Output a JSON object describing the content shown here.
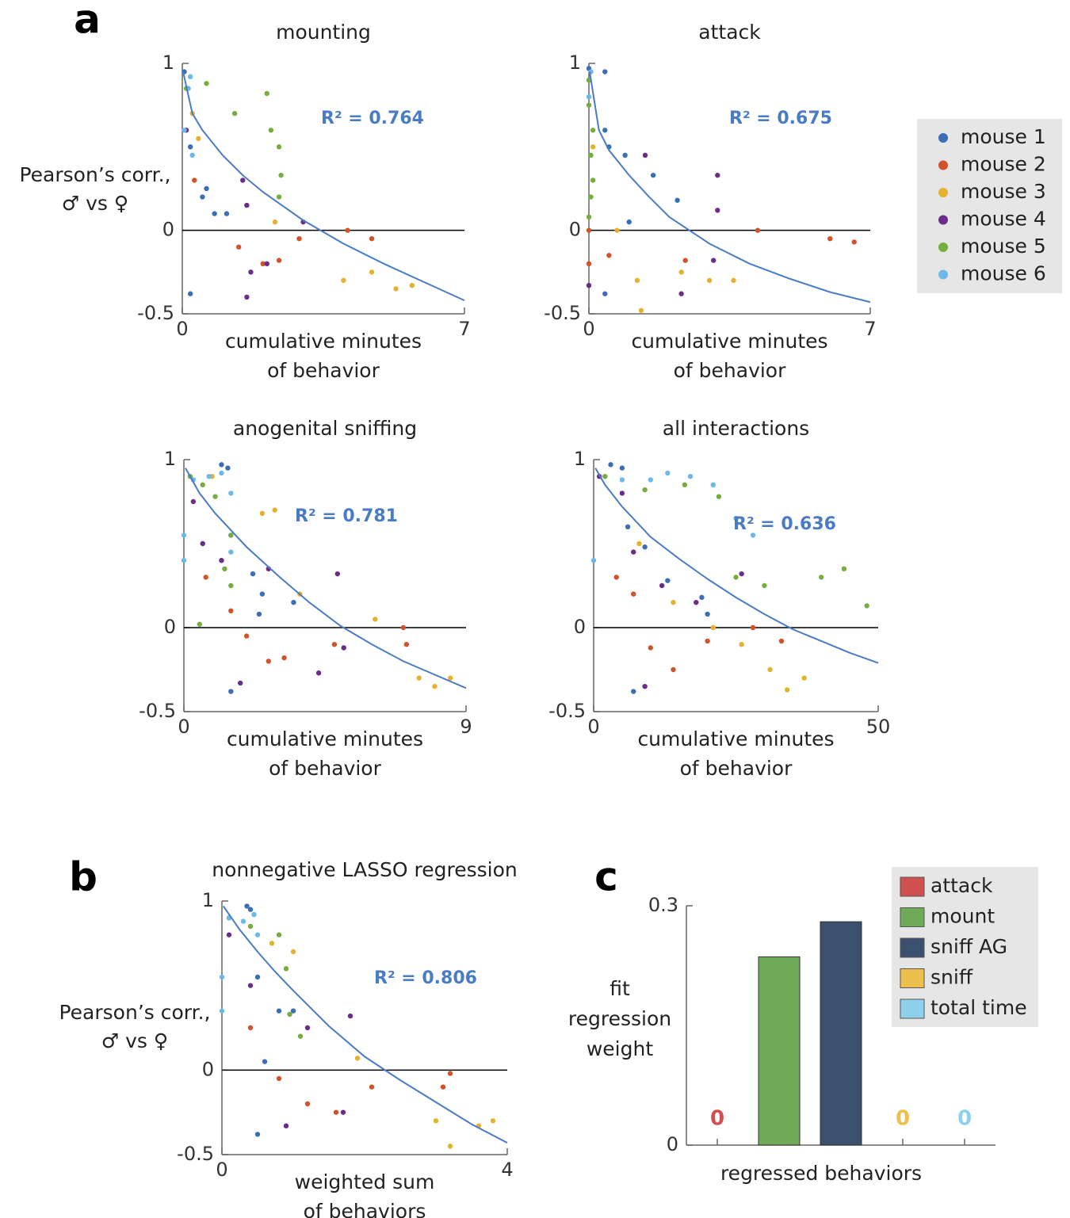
{
  "chart_data": [
    {
      "type": "scatter",
      "panel_label": "a",
      "title": "mounting",
      "xlabel": [
        "cumulative minutes",
        "of behavior"
      ],
      "ylabel": [
        "Pearson’s corr.,",
        "♂ vs ♀"
      ],
      "xlim": [
        0,
        7
      ],
      "xticks": [
        0,
        7
      ],
      "ylim": [
        -0.5,
        1
      ],
      "yticks": [
        -0.5,
        0,
        1
      ],
      "annotation": "R² = 0.764",
      "fit": {
        "color": "#4a7cc4",
        "x": [
          0.02,
          0.25,
          0.5,
          1,
          1.5,
          2,
          3,
          4,
          5,
          6,
          7
        ],
        "values": [
          0.95,
          0.7,
          0.6,
          0.45,
          0.33,
          0.23,
          0.06,
          -0.08,
          -0.2,
          -0.31,
          -0.42
        ]
      },
      "series": [
        {
          "color": "#3a6fb5",
          "x": [
            0.05,
            0.2,
            0.5,
            0.6,
            0.8,
            0.2,
            1.1
          ],
          "values": [
            0.95,
            0.5,
            0.2,
            0.25,
            0.1,
            -0.38,
            0.1
          ]
        },
        {
          "color": "#d2522a",
          "x": [
            0.3,
            1.4,
            2,
            2.4,
            2.9,
            4.1,
            4.7
          ],
          "values": [
            0.3,
            -0.1,
            -0.2,
            -0.18,
            -0.05,
            0.0,
            -0.05
          ]
        },
        {
          "color": "#e6b22e",
          "x": [
            0.25,
            0.4,
            2.3,
            4,
            5.7,
            4.7,
            5.3
          ],
          "values": [
            0.7,
            0.55,
            0.05,
            -0.3,
            -0.33,
            -0.25,
            -0.35
          ]
        },
        {
          "color": "#6c2c8a",
          "x": [
            0.1,
            1.5,
            1.6,
            1.7,
            1.6,
            2.1,
            3.0
          ],
          "values": [
            0.6,
            0.3,
            0.15,
            -0.25,
            -0.4,
            -0.2,
            0.05
          ]
        },
        {
          "color": "#76ad3f",
          "x": [
            0.6,
            1.3,
            2.1,
            2.2,
            2.4,
            2.45,
            2.4,
            0.1
          ],
          "values": [
            0.88,
            0.7,
            0.82,
            0.6,
            0.5,
            0.33,
            0.2,
            0.85
          ]
        },
        {
          "color": "#6db8e8",
          "x": [
            0.2,
            0.15,
            0.05,
            0.25
          ],
          "values": [
            0.92,
            0.85,
            0.6,
            0.45
          ]
        }
      ]
    },
    {
      "type": "scatter",
      "title": "attack",
      "xlabel": [
        "cumulative minutes",
        "of behavior"
      ],
      "xlim": [
        0,
        7
      ],
      "xticks": [
        0,
        7
      ],
      "ylim": [
        -0.5,
        1
      ],
      "yticks": [
        -0.5,
        0,
        1
      ],
      "annotation": "R² = 0.675",
      "legend": [
        {
          "name": "mouse 1",
          "color": "#3a6fb5"
        },
        {
          "name": "mouse 2",
          "color": "#d2522a"
        },
        {
          "name": "mouse 3",
          "color": "#e6b22e"
        },
        {
          "name": "mouse 4",
          "color": "#6c2c8a"
        },
        {
          "name": "mouse 5",
          "color": "#76ad3f"
        },
        {
          "name": "mouse 6",
          "color": "#6db8e8"
        }
      ],
      "fit": {
        "color": "#4a7cc4",
        "x": [
          0.02,
          0.25,
          0.5,
          1,
          1.5,
          2,
          3,
          4,
          5,
          6,
          7
        ],
        "values": [
          0.95,
          0.6,
          0.48,
          0.33,
          0.2,
          0.08,
          -0.08,
          -0.2,
          -0.29,
          -0.37,
          -0.43
        ]
      },
      "series": [
        {
          "color": "#3a6fb5",
          "x": [
            0,
            0.4,
            0.4,
            0.5,
            0.9,
            1.6,
            2.2,
            0.4,
            1.0
          ],
          "values": [
            0.97,
            0.95,
            0.6,
            0.5,
            0.45,
            0.33,
            0.18,
            -0.38,
            0.05
          ]
        },
        {
          "color": "#d2522a",
          "x": [
            0,
            0,
            0.5,
            2.4,
            4.2,
            6,
            6.6
          ],
          "values": [
            0.0,
            -0.2,
            -0.15,
            -0.18,
            0.0,
            -0.05,
            -0.07
          ]
        },
        {
          "color": "#e6b22e",
          "x": [
            0.1,
            0.7,
            1.2,
            2.3,
            3,
            3.6,
            1.3
          ],
          "values": [
            0.5,
            0.0,
            -0.3,
            -0.25,
            -0.3,
            -0.3,
            -0.48
          ]
        },
        {
          "color": "#6c2c8a",
          "x": [
            0,
            1.4,
            2.3,
            3.1,
            3.2,
            3.2
          ],
          "values": [
            -0.33,
            0.45,
            -0.38,
            -0.18,
            0.33,
            0.12
          ]
        },
        {
          "color": "#76ad3f",
          "x": [
            0,
            0,
            0.1,
            0.05,
            0.1,
            0.05,
            0
          ],
          "values": [
            0.9,
            0.75,
            0.6,
            0.45,
            0.3,
            0.2,
            0.08
          ]
        },
        {
          "color": "#6db8e8",
          "x": [
            0,
            0.05
          ],
          "values": [
            0.8,
            0.95
          ]
        }
      ]
    },
    {
      "type": "scatter",
      "title": "anogenital sniffing",
      "xlabel": [
        "cumulative minutes",
        "of behavior"
      ],
      "xlim": [
        0,
        9
      ],
      "xticks": [
        0,
        9
      ],
      "ylim": [
        -0.5,
        1
      ],
      "yticks": [
        -0.5,
        0,
        1
      ],
      "annotation": "R² = 0.781",
      "fit": {
        "color": "#4a7cc4",
        "x": [
          0.05,
          0.5,
          1,
          2,
          3,
          4,
          5,
          6,
          7,
          8,
          9
        ],
        "values": [
          0.95,
          0.8,
          0.68,
          0.48,
          0.31,
          0.15,
          0.01,
          -0.1,
          -0.2,
          -0.28,
          -0.36
        ]
      },
      "series": [
        {
          "color": "#3a6fb5",
          "x": [
            1.2,
            1.4,
            1.5,
            2.2,
            2.5,
            3.5,
            1.5,
            2.4
          ],
          "values": [
            0.97,
            0.95,
            0.55,
            0.32,
            0.2,
            0.15,
            -0.38,
            0.08
          ]
        },
        {
          "color": "#d2522a",
          "x": [
            0.7,
            1.5,
            2,
            2.7,
            3.2,
            4.8,
            7.1,
            7.0
          ],
          "values": [
            0.3,
            0.1,
            -0.05,
            -0.2,
            -0.18,
            -0.1,
            -0.1,
            0.0
          ]
        },
        {
          "color": "#e6b22e",
          "x": [
            0.9,
            2.5,
            2.9,
            3.7,
            6.1,
            7.5,
            8.0,
            8.5
          ],
          "values": [
            0.9,
            0.68,
            0.7,
            0.2,
            0.05,
            -0.3,
            -0.35,
            -0.3
          ]
        },
        {
          "color": "#6c2c8a",
          "x": [
            0.3,
            0.6,
            1.2,
            2.7,
            4.9,
            4.3,
            5.1,
            1.8
          ],
          "values": [
            0.75,
            0.5,
            0.4,
            0.35,
            0.32,
            -0.27,
            -0.12,
            -0.33
          ]
        },
        {
          "color": "#76ad3f",
          "x": [
            0.2,
            0.6,
            1.0,
            1.5,
            1.3,
            1.5,
            0.5
          ],
          "values": [
            0.9,
            0.85,
            0.78,
            0.55,
            0.35,
            0.25,
            0.02
          ]
        },
        {
          "color": "#6db8e8",
          "x": [
            0.3,
            0.8,
            1.2,
            1.5,
            1.5,
            0.0,
            0.0
          ],
          "values": [
            0.88,
            0.9,
            0.92,
            0.8,
            0.45,
            0.55,
            0.4
          ]
        }
      ]
    },
    {
      "type": "scatter",
      "title": "all interactions",
      "xlabel": [
        "cumulative minutes",
        "of behavior"
      ],
      "xlim": [
        0,
        50
      ],
      "xticks": [
        0,
        50
      ],
      "ylim": [
        -0.5,
        1
      ],
      "yticks": [
        -0.5,
        0,
        1
      ],
      "annotation": "R² = 0.636",
      "fit": {
        "color": "#4a7cc4",
        "x": [
          0.3,
          2,
          5,
          10,
          15,
          20,
          25,
          30,
          35,
          40,
          45,
          50
        ],
        "values": [
          0.95,
          0.85,
          0.72,
          0.54,
          0.41,
          0.29,
          0.18,
          0.08,
          -0.01,
          -0.08,
          -0.15,
          -0.21
        ]
      },
      "series": [
        {
          "color": "#3a6fb5",
          "x": [
            3,
            5,
            6,
            9,
            13,
            19,
            20,
            7
          ],
          "values": [
            0.97,
            0.95,
            0.6,
            0.48,
            0.28,
            0.18,
            0.08,
            -0.38
          ]
        },
        {
          "color": "#d2522a",
          "x": [
            4,
            7,
            10,
            14,
            20,
            28,
            33
          ],
          "values": [
            0.3,
            0.2,
            -0.12,
            -0.25,
            -0.08,
            0.0,
            -0.08
          ]
        },
        {
          "color": "#e6b22e",
          "x": [
            8,
            14,
            21,
            26,
            31,
            37,
            34
          ],
          "values": [
            0.5,
            0.15,
            0.0,
            -0.1,
            -0.25,
            -0.3,
            -0.37
          ]
        },
        {
          "color": "#6c2c8a",
          "x": [
            1,
            5,
            7,
            12,
            18,
            26,
            9
          ],
          "values": [
            0.9,
            0.8,
            0.45,
            0.25,
            0.15,
            0.32,
            -0.35
          ]
        },
        {
          "color": "#76ad3f",
          "x": [
            2,
            9,
            16,
            22,
            25,
            30,
            40,
            44,
            48
          ],
          "values": [
            0.9,
            0.82,
            0.85,
            0.78,
            0.3,
            0.25,
            0.3,
            0.35,
            0.13
          ]
        },
        {
          "color": "#6db8e8",
          "x": [
            5,
            10,
            13,
            17,
            21,
            25,
            28,
            0
          ],
          "values": [
            0.88,
            0.88,
            0.92,
            0.9,
            0.85,
            0.65,
            0.55,
            0.4
          ]
        }
      ]
    },
    {
      "type": "scatter",
      "panel_label": "b",
      "title": "nonnegative LASSO regression",
      "xlabel": [
        "weighted sum",
        "of behaviors"
      ],
      "ylabel": [
        "Pearson’s corr.,",
        "♂ vs ♀"
      ],
      "xlim": [
        0,
        4
      ],
      "xticks": [
        0,
        4
      ],
      "ylim": [
        -0.5,
        1
      ],
      "yticks": [
        -0.5,
        0,
        1
      ],
      "annotation": "R² = 0.806",
      "fit": {
        "color": "#4a7cc4",
        "x": [
          0.02,
          0.25,
          0.5,
          0.75,
          1,
          1.5,
          2,
          2.5,
          3,
          3.5,
          4
        ],
        "values": [
          0.97,
          0.83,
          0.7,
          0.58,
          0.47,
          0.26,
          0.08,
          -0.06,
          -0.19,
          -0.32,
          -0.43
        ]
      },
      "series": [
        {
          "color": "#3a6fb5",
          "x": [
            0.35,
            0.4,
            0.5,
            0.8,
            1.0,
            0.5,
            0.6
          ],
          "values": [
            0.97,
            0.95,
            0.55,
            0.35,
            0.35,
            -0.38,
            0.05
          ]
        },
        {
          "color": "#d2522a",
          "x": [
            0.4,
            0.8,
            1.2,
            1.6,
            2.1,
            3.1,
            3.2
          ],
          "values": [
            0.25,
            -0.05,
            -0.2,
            -0.25,
            -0.1,
            -0.1,
            -0.02
          ]
        },
        {
          "color": "#e6b22e",
          "x": [
            0.7,
            1.0,
            1.9,
            3.0,
            3.6,
            3.2,
            3.8
          ],
          "values": [
            0.75,
            0.7,
            0.07,
            -0.3,
            -0.33,
            -0.45,
            -0.3
          ]
        },
        {
          "color": "#6c2c8a",
          "x": [
            0.1,
            0.4,
            1.2,
            1.8,
            1.7,
            0.9
          ],
          "values": [
            0.8,
            0.5,
            0.25,
            0.32,
            -0.25,
            -0.33
          ]
        },
        {
          "color": "#76ad3f",
          "x": [
            0.1,
            0.4,
            0.8,
            0.9,
            0.95,
            1.1
          ],
          "values": [
            0.9,
            0.85,
            0.8,
            0.6,
            0.33,
            0.2
          ]
        },
        {
          "color": "#6db8e8",
          "x": [
            0.1,
            0.3,
            0.45,
            0.5,
            0.0,
            0.0
          ],
          "values": [
            0.9,
            0.88,
            0.92,
            0.8,
            0.55,
            0.35
          ]
        }
      ]
    },
    {
      "type": "bar",
      "panel_label": "c",
      "xlabel": "regressed behaviors",
      "ylabel": [
        "fit",
        "regression",
        "weight"
      ],
      "categories": [
        "attack",
        "mount",
        "sniff AG",
        "sniff",
        "total time"
      ],
      "values": [
        0,
        0.236,
        0.28,
        0,
        0
      ],
      "colors": [
        "#d05050",
        "#6fab57",
        "#3b4f6e",
        "#ecc04c",
        "#8fd0ec"
      ],
      "ylim": [
        0,
        0.3
      ],
      "yticks": [
        0,
        0.3
      ]
    }
  ]
}
